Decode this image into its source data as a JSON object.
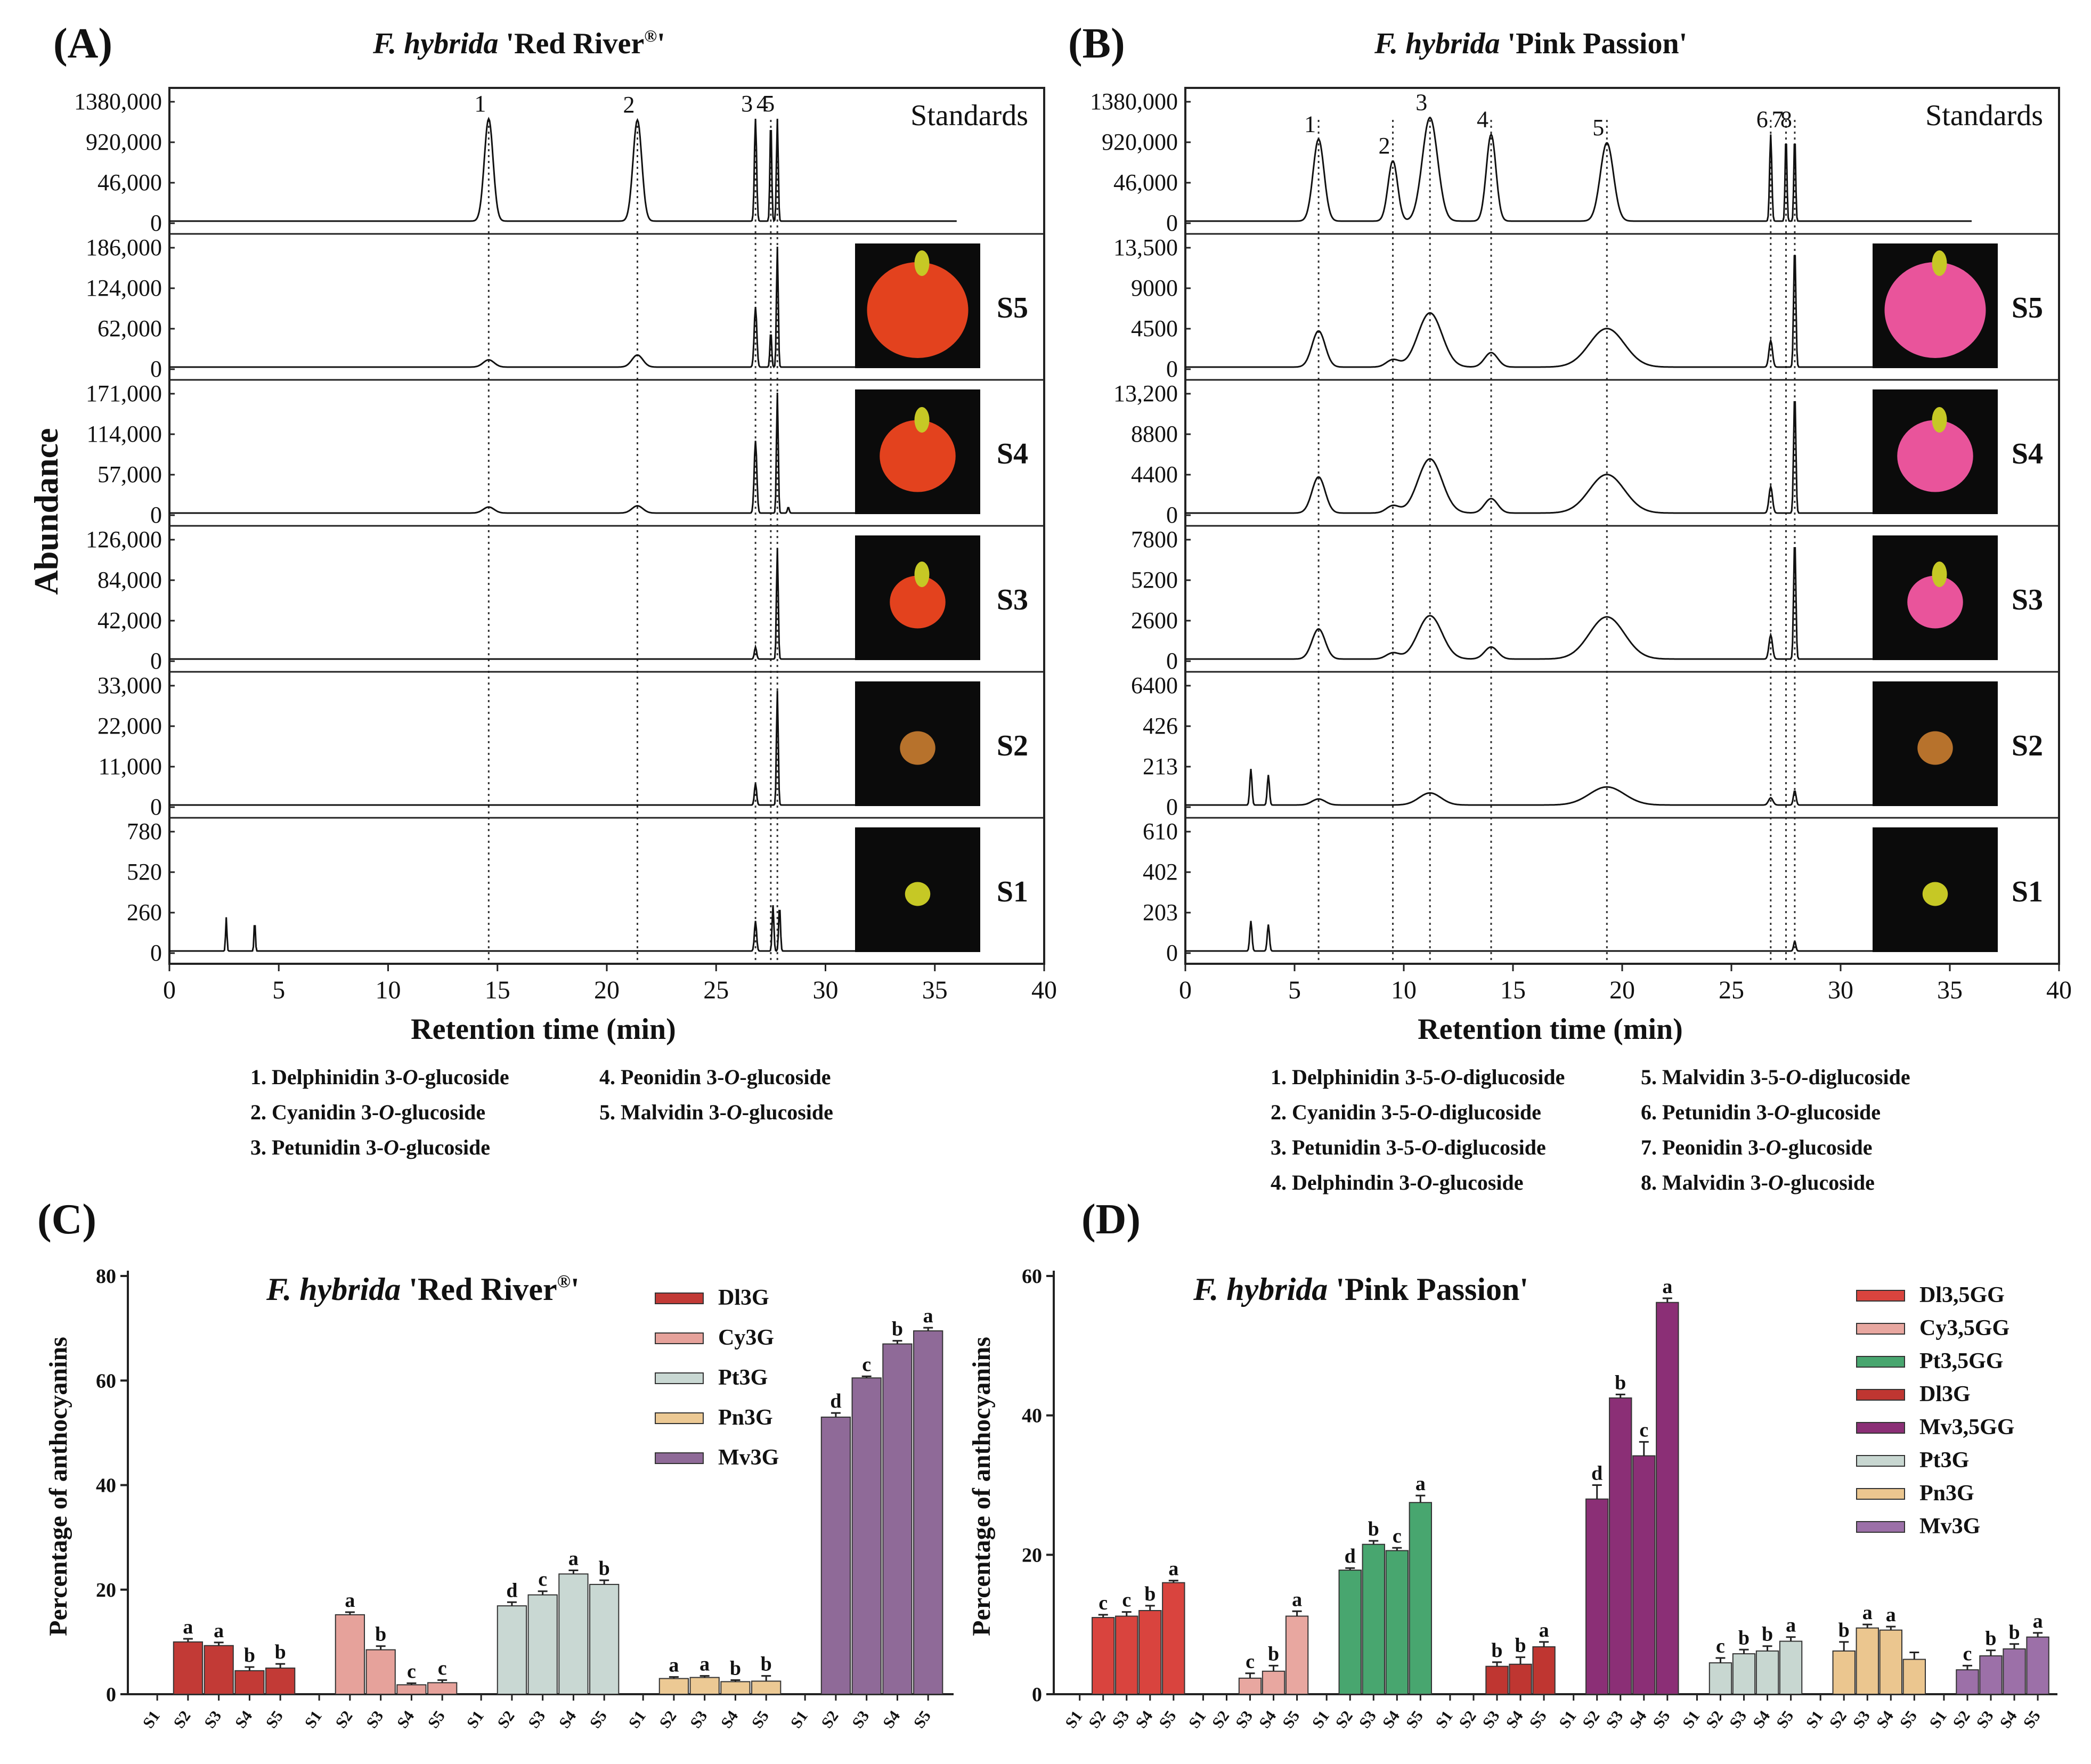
{
  "panels": {
    "A": {
      "letter": "(A)",
      "title_italic": "F. hybrida",
      "title_rest": " 'Red River",
      "title_reg": "®",
      "title_end": "'"
    },
    "B": {
      "letter": "(B)",
      "title_italic": "F. hybrida",
      "title_rest": " 'Pink Passion'"
    },
    "C": {
      "letter": "(C)",
      "title_italic": "F. hybrida",
      "title_rest": " 'Red River",
      "title_reg": "®",
      "title_end": "'"
    },
    "D": {
      "letter": "(D)",
      "title_italic": "F. hybrida",
      "title_rest": " 'Pink Passion'"
    }
  },
  "y_axis_label_left": "Abundance",
  "x_axis_label": "Retention time (min)",
  "bar_y_label": "Percentage of anthocyanins",
  "standards_label": "Standards",
  "stage_labels": [
    "S5",
    "S4",
    "S3",
    "S2",
    "S1"
  ],
  "legend_A": {
    "col1": [
      {
        "n": "1. ",
        "pre": "Delphinidin 3-",
        "it": "O",
        "post": "-glucoside"
      },
      {
        "n": "2. ",
        "pre": "Cyanidin 3-",
        "it": "O",
        "post": "-glucoside"
      },
      {
        "n": "3. ",
        "pre": "Petunidin 3-",
        "it": "O",
        "post": "-glucoside"
      }
    ],
    "col2": [
      {
        "n": "4. ",
        "pre": "Peonidin 3-",
        "it": "O",
        "post": "-glucoside"
      },
      {
        "n": "5. ",
        "pre": "Malvidin 3-",
        "it": "O",
        "post": "-glucoside"
      }
    ]
  },
  "legend_B": {
    "col1": [
      {
        "n": "1. ",
        "pre": "Delphinidin 3-5-",
        "it": "O",
        "post": "-diglucoside"
      },
      {
        "n": "2. ",
        "pre": "Cyanidin 3-5-",
        "it": "O",
        "post": "-diglucoside"
      },
      {
        "n": "3. ",
        "pre": "Petunidin 3-5-",
        "it": "O",
        "post": "-diglucoside"
      },
      {
        "n": "4. ",
        "pre": "Delphindin  3-",
        "it": "O",
        "post": "-glucoside"
      }
    ],
    "col2": [
      {
        "n": "5. ",
        "pre": "Malvidin 3-5-",
        "it": "O",
        "post": "-diglucoside"
      },
      {
        "n": "6. ",
        "pre": "Petunidin 3-",
        "it": "O",
        "post": "-glucoside"
      },
      {
        "n": "7. ",
        "pre": "Peonidin 3-",
        "it": "O",
        "post": "-glucoside"
      },
      {
        "n": "8. ",
        "pre": "Malvidin 3-",
        "it": "O",
        "post": "-glucoside"
      }
    ]
  },
  "colors": {
    "Dl3G_A": "#c23a36",
    "Cy3G": "#e6a29b",
    "Pt3G": "#c9d8d3",
    "Pn3G": "#ecc994",
    "Mv3G": "#8f6a98",
    "Dl35GG": "#d9443e",
    "Cy35GG": "#e8a7a0",
    "Pt35GG": "#48a66f",
    "Dl3G_D": "#bf3631",
    "Mv35GG": "#8b2f76",
    "Pt3G_D": "#c8d7d1",
    "Pn3G_D": "#ebc68f",
    "Mv3G_D": "#9c70a8",
    "flower_red": "#e3421e",
    "flower_pink": "#e9549b",
    "flower_bud": "#c6c825"
  },
  "chart_data": [
    {
      "type": "line",
      "panel": "A",
      "title": "F. hybrida 'Red River®'",
      "xlabel": "Retention time (min)",
      "ylabel": "Abundance",
      "xlim": [
        0,
        40
      ],
      "x_ticks": [
        "0",
        "5",
        "10",
        "15",
        "20",
        "25",
        "30",
        "35",
        "40"
      ],
      "peak_labels": [
        "1",
        "2",
        "3",
        "4",
        "5"
      ],
      "peak_times": [
        14.6,
        21.4,
        26.8,
        27.5,
        27.8
      ],
      "series": [
        {
          "name": "Standards",
          "ticks": [
            "1380,000",
            "920,000",
            "46,000",
            "0"
          ],
          "peaks": [
            [
              14.6,
              0.85,
              0.2
            ],
            [
              21.4,
              0.84,
              0.2
            ],
            [
              26.8,
              0.85,
              0.05
            ],
            [
              27.5,
              0.85,
              0.04
            ],
            [
              27.8,
              0.85,
              0.04
            ]
          ]
        },
        {
          "name": "S5",
          "ticks": [
            "186,000",
            "124,000",
            "62,000",
            "0"
          ],
          "peaks": [
            [
              14.6,
              0.06,
              0.25
            ],
            [
              21.4,
              0.1,
              0.25
            ],
            [
              26.8,
              0.5,
              0.06
            ],
            [
              27.5,
              0.3,
              0.04
            ],
            [
              27.8,
              1.0,
              0.04
            ]
          ]
        },
        {
          "name": "S4",
          "ticks": [
            "171,000",
            "114,000",
            "57,000",
            "0"
          ],
          "peaks": [
            [
              14.6,
              0.05,
              0.25
            ],
            [
              21.4,
              0.06,
              0.25
            ],
            [
              26.8,
              0.6,
              0.06
            ],
            [
              27.8,
              1.0,
              0.04
            ],
            [
              28.3,
              0.05,
              0.04
            ]
          ]
        },
        {
          "name": "S3",
          "ticks": [
            "126,000",
            "84,000",
            "42,000",
            "0"
          ],
          "peaks": [
            [
              26.8,
              0.1,
              0.05
            ],
            [
              27.8,
              0.92,
              0.04
            ]
          ]
        },
        {
          "name": "S2",
          "ticks": [
            "33,000",
            "22,000",
            "11,000",
            "0"
          ],
          "peaks": [
            [
              26.8,
              0.18,
              0.05
            ],
            [
              27.8,
              0.95,
              0.04
            ]
          ]
        },
        {
          "name": "S1",
          "ticks": [
            "780",
            "520",
            "260",
            "0"
          ],
          "peaks": [
            [
              2.6,
              0.28,
              0.03
            ],
            [
              3.9,
              0.26,
              0.03
            ],
            [
              26.8,
              0.25,
              0.05
            ],
            [
              27.6,
              0.38,
              0.04
            ],
            [
              27.9,
              0.38,
              0.04
            ]
          ]
        }
      ]
    },
    {
      "type": "line",
      "panel": "B",
      "title": "F. hybrida 'Pink Passion'",
      "xlabel": "Retention time (min)",
      "xlim": [
        0,
        40
      ],
      "x_ticks": [
        "0",
        "5",
        "10",
        "15",
        "20",
        "25",
        "30",
        "35",
        "40"
      ],
      "peak_labels": [
        "1",
        "2",
        "3",
        "4",
        "5",
        "6",
        "7",
        "8"
      ],
      "peak_times": [
        6.1,
        9.5,
        11.2,
        14.0,
        19.3,
        26.8,
        27.5,
        27.9
      ],
      "series": [
        {
          "name": "Standards",
          "ticks": [
            "1380,000",
            "920,000",
            "46,000",
            "0"
          ],
          "peaks": [
            [
              6.1,
              0.68,
              0.25
            ],
            [
              9.5,
              0.5,
              0.22
            ],
            [
              11.2,
              0.86,
              0.35
            ],
            [
              14.0,
              0.72,
              0.22
            ],
            [
              19.3,
              0.65,
              0.3
            ],
            [
              26.8,
              0.72,
              0.05
            ],
            [
              27.5,
              0.72,
              0.04
            ],
            [
              27.9,
              0.72,
              0.04
            ]
          ]
        },
        {
          "name": "S5",
          "ticks": [
            "13,500",
            "9000",
            "4500",
            "0"
          ],
          "peaks": [
            [
              6.1,
              0.3,
              0.3
            ],
            [
              9.5,
              0.06,
              0.3
            ],
            [
              11.2,
              0.45,
              0.55
            ],
            [
              14.0,
              0.12,
              0.3
            ],
            [
              19.3,
              0.32,
              0.8
            ],
            [
              26.8,
              0.22,
              0.08
            ],
            [
              27.9,
              1.0,
              0.05
            ]
          ]
        },
        {
          "name": "S4",
          "ticks": [
            "13,200",
            "8800",
            "4400",
            "0"
          ],
          "peaks": [
            [
              6.1,
              0.3,
              0.3
            ],
            [
              9.5,
              0.06,
              0.3
            ],
            [
              11.2,
              0.45,
              0.55
            ],
            [
              14.0,
              0.12,
              0.3
            ],
            [
              19.3,
              0.32,
              0.8
            ],
            [
              26.8,
              0.22,
              0.08
            ],
            [
              27.9,
              1.0,
              0.05
            ]
          ]
        },
        {
          "name": "S3",
          "ticks": [
            "7800",
            "5200",
            "2600",
            "0"
          ],
          "peaks": [
            [
              6.1,
              0.25,
              0.3
            ],
            [
              9.5,
              0.05,
              0.3
            ],
            [
              11.2,
              0.36,
              0.55
            ],
            [
              14.0,
              0.1,
              0.3
            ],
            [
              19.3,
              0.35,
              0.8
            ],
            [
              26.8,
              0.2,
              0.08
            ],
            [
              27.9,
              1.0,
              0.05
            ]
          ]
        },
        {
          "name": "S2",
          "ticks": [
            "6400",
            "426",
            "213",
            "0"
          ],
          "peaks": [
            [
              3.0,
              0.3,
              0.05
            ],
            [
              3.8,
              0.25,
              0.05
            ],
            [
              6.1,
              0.05,
              0.3
            ],
            [
              11.2,
              0.1,
              0.5
            ],
            [
              19.3,
              0.15,
              0.8
            ],
            [
              26.8,
              0.06,
              0.1
            ],
            [
              27.9,
              0.12,
              0.06
            ]
          ]
        },
        {
          "name": "S1",
          "ticks": [
            "610",
            "402",
            "203",
            "0"
          ],
          "peaks": [
            [
              3.0,
              0.25,
              0.05
            ],
            [
              3.8,
              0.22,
              0.05
            ],
            [
              27.9,
              0.08,
              0.05
            ]
          ]
        }
      ]
    },
    {
      "type": "bar",
      "panel": "C",
      "title": "F. hybrida 'Red River®'",
      "ylabel": "Percentage of anthocyanins",
      "ylim": [
        0,
        80
      ],
      "y_ticks": [
        "0",
        "20",
        "40",
        "60",
        "80"
      ],
      "stages": [
        "S1",
        "S2",
        "S3",
        "S4",
        "S5"
      ],
      "groups": [
        {
          "name": "Dl3G",
          "color": "#c23a36",
          "values": [
            0,
            10.0,
            9.3,
            4.5,
            5.0
          ],
          "errors": [
            0,
            0.6,
            0.6,
            0.7,
            0.8
          ],
          "letters": [
            "",
            "a",
            "a",
            "b",
            "b"
          ]
        },
        {
          "name": "Cy3G",
          "color": "#e6a29b",
          "values": [
            0,
            15.2,
            8.5,
            1.8,
            2.2
          ],
          "errors": [
            0,
            0.5,
            0.7,
            0.3,
            0.5
          ],
          "letters": [
            "",
            "a",
            "b",
            "c",
            "c"
          ]
        },
        {
          "name": "Pt3G",
          "color": "#c9d8d3",
          "values": [
            0,
            16.9,
            19.0,
            23.0,
            21.0
          ],
          "errors": [
            0,
            0.7,
            0.7,
            0.7,
            0.8
          ],
          "letters": [
            "",
            "d",
            "c",
            "a",
            "b"
          ]
        },
        {
          "name": "Pn3G",
          "color": "#ecc994",
          "values": [
            0,
            3.0,
            3.2,
            2.4,
            2.5
          ],
          "errors": [
            0,
            0.3,
            0.3,
            0.3,
            1.0
          ],
          "letters": [
            "",
            "a",
            "a",
            "b",
            "b"
          ]
        },
        {
          "name": "Mv3G",
          "color": "#8f6a98",
          "values": [
            0,
            53.0,
            60.5,
            67.0,
            69.5
          ],
          "errors": [
            0,
            0.8,
            0.3,
            0.6,
            0.6
          ],
          "letters": [
            "",
            "d",
            "c",
            "b",
            "a"
          ]
        }
      ]
    },
    {
      "type": "bar",
      "panel": "D",
      "title": "F. hybrida 'Pink Passion'",
      "ylabel": "Percentage of anthocyanins",
      "ylim": [
        0,
        60
      ],
      "y_ticks": [
        "0",
        "20",
        "40",
        "60"
      ],
      "stages": [
        "S1",
        "S2",
        "S3",
        "S4",
        "S5"
      ],
      "groups": [
        {
          "name": "Dl3,5GG",
          "color": "#d9443e",
          "values": [
            0,
            11.0,
            11.2,
            12.0,
            16.0
          ],
          "errors": [
            0,
            0.4,
            0.6,
            0.7,
            0.3
          ],
          "letters": [
            "",
            "c",
            "c",
            "b",
            "a"
          ]
        },
        {
          "name": "Cy3,5GG",
          "color": "#e8a7a0",
          "values": [
            0,
            0,
            2.3,
            3.3,
            11.2
          ],
          "errors": [
            0,
            0,
            0.7,
            0.8,
            0.7
          ],
          "letters": [
            "",
            "",
            "c",
            "b",
            "a"
          ]
        },
        {
          "name": "Pt3,5GG",
          "color": "#48a66f",
          "values": [
            0,
            17.8,
            21.5,
            20.6,
            27.5
          ],
          "errors": [
            0,
            0.3,
            0.5,
            0.4,
            1.0
          ],
          "letters": [
            "",
            "d",
            "b",
            "c",
            "a"
          ]
        },
        {
          "name": "Dl3G",
          "color": "#bf3631",
          "values": [
            0,
            0,
            4.0,
            4.3,
            6.8
          ],
          "errors": [
            0,
            0,
            0.6,
            1.0,
            0.7
          ],
          "letters": [
            "",
            "",
            "b",
            "b",
            "a"
          ]
        },
        {
          "name": "Mv3,5GG",
          "color": "#8b2f76",
          "values": [
            0,
            28.0,
            42.5,
            34.2,
            56.2
          ],
          "errors": [
            0,
            2.0,
            0.5,
            2.0,
            0.6
          ],
          "letters": [
            "",
            "d",
            "b",
            "c",
            "a"
          ]
        },
        {
          "name": "Pt3G",
          "color": "#c8d7d1",
          "values": [
            0,
            4.5,
            5.8,
            6.2,
            7.6
          ],
          "errors": [
            0,
            0.7,
            0.6,
            0.7,
            0.6
          ],
          "letters": [
            "",
            "c",
            "b",
            "b",
            "a"
          ]
        },
        {
          "name": "Pn3G",
          "color": "#ebc68f",
          "values": [
            0,
            6.2,
            9.5,
            9.2,
            5.0
          ],
          "errors": [
            0,
            1.3,
            0.5,
            0.5,
            1.0
          ],
          "letters": [
            "",
            "b",
            "a",
            "a",
            ""
          ]
        },
        {
          "name": "Mv3G",
          "color": "#9c70a8",
          "values": [
            0,
            3.5,
            5.5,
            6.5,
            8.2
          ],
          "errors": [
            0,
            0.6,
            0.8,
            0.7,
            0.6
          ],
          "letters": [
            "",
            "c",
            "b",
            "b",
            "a"
          ]
        }
      ]
    }
  ]
}
